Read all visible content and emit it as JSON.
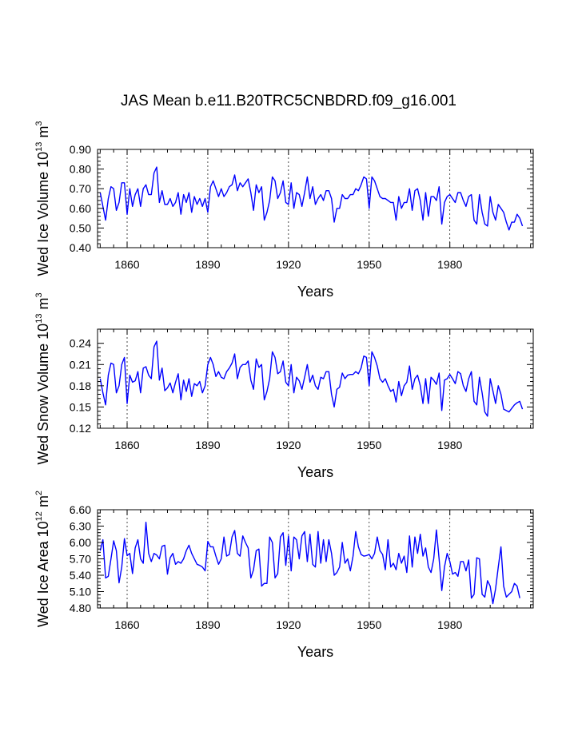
{
  "title": "JAS Mean b.e11.B20TRC5CNBDRD.f09_g16.001",
  "series_color": "#0000ff",
  "chart_data": [
    {
      "type": "line",
      "name": "ice-volume",
      "ylabel": {
        "prefix": "Wed Ice Volume 10",
        "exp": "13",
        "unit": " m",
        "unit_exp": "3"
      },
      "xlabel": "Years",
      "xlim": [
        1849,
        2011
      ],
      "ylim": [
        0.4,
        0.9
      ],
      "xticks": [
        1860,
        1890,
        1920,
        1950,
        1980
      ],
      "xtick_labels": [
        "1860",
        "1890",
        "1920",
        "1950",
        "1980"
      ],
      "yticks": [
        0.4,
        0.5,
        0.6,
        0.7,
        0.8,
        0.9
      ],
      "ytick_labels": [
        "0.40",
        "0.50",
        "0.60",
        "0.70",
        "0.80",
        "0.90"
      ],
      "x_start": 1850,
      "values": [
        0.68,
        0.61,
        0.54,
        0.65,
        0.71,
        0.7,
        0.59,
        0.63,
        0.73,
        0.73,
        0.57,
        0.7,
        0.61,
        0.67,
        0.7,
        0.61,
        0.7,
        0.72,
        0.67,
        0.67,
        0.78,
        0.81,
        0.63,
        0.69,
        0.62,
        0.62,
        0.65,
        0.61,
        0.63,
        0.68,
        0.57,
        0.67,
        0.63,
        0.68,
        0.58,
        0.66,
        0.62,
        0.65,
        0.61,
        0.65,
        0.58,
        0.71,
        0.74,
        0.7,
        0.66,
        0.7,
        0.66,
        0.68,
        0.71,
        0.72,
        0.77,
        0.69,
        0.73,
        0.71,
        0.73,
        0.75,
        0.68,
        0.59,
        0.72,
        0.68,
        0.71,
        0.54,
        0.58,
        0.64,
        0.76,
        0.74,
        0.65,
        0.68,
        0.74,
        0.63,
        0.62,
        0.73,
        0.6,
        0.68,
        0.67,
        0.61,
        0.68,
        0.76,
        0.65,
        0.71,
        0.62,
        0.65,
        0.67,
        0.64,
        0.69,
        0.69,
        0.65,
        0.53,
        0.6,
        0.6,
        0.67,
        0.65,
        0.65,
        0.67,
        0.67,
        0.7,
        0.69,
        0.72,
        0.76,
        0.75,
        0.6,
        0.76,
        0.74,
        0.7,
        0.66,
        0.65,
        0.65,
        0.64,
        0.63,
        0.63,
        0.54,
        0.66,
        0.6,
        0.63,
        0.63,
        0.7,
        0.59,
        0.69,
        0.7,
        0.64,
        0.54,
        0.68,
        0.56,
        0.66,
        0.66,
        0.64,
        0.71,
        0.52,
        0.63,
        0.66,
        0.67,
        0.65,
        0.63,
        0.68,
        0.68,
        0.64,
        0.61,
        0.66,
        0.67,
        0.54,
        0.52,
        0.67,
        0.58,
        0.52,
        0.51,
        0.66,
        0.58,
        0.54,
        0.62,
        0.6,
        0.58,
        0.53,
        0.49,
        0.53,
        0.53,
        0.57,
        0.55,
        0.51
      ]
    },
    {
      "type": "line",
      "name": "snow-volume",
      "ylabel": {
        "prefix": "Wed Snow Volume 10",
        "exp": "13",
        "unit": " m",
        "unit_exp": "3"
      },
      "xlabel": "Years",
      "xlim": [
        1849,
        2011
      ],
      "ylim": [
        0.12,
        0.26
      ],
      "xticks": [
        1860,
        1890,
        1920,
        1950,
        1980
      ],
      "xtick_labels": [
        "1860",
        "1890",
        "1920",
        "1950",
        "1980"
      ],
      "yticks": [
        0.12,
        0.15,
        0.18,
        0.21,
        0.24
      ],
      "ytick_labels": [
        "0.12",
        "0.15",
        "0.18",
        "0.21",
        "0.24"
      ],
      "x_start": 1850,
      "values": [
        0.19,
        0.17,
        0.153,
        0.195,
        0.212,
        0.21,
        0.17,
        0.18,
        0.21,
        0.22,
        0.155,
        0.195,
        0.185,
        0.187,
        0.2,
        0.17,
        0.205,
        0.207,
        0.195,
        0.19,
        0.235,
        0.243,
        0.188,
        0.205,
        0.173,
        0.177,
        0.184,
        0.17,
        0.185,
        0.197,
        0.16,
        0.188,
        0.172,
        0.19,
        0.165,
        0.183,
        0.18,
        0.186,
        0.17,
        0.18,
        0.21,
        0.22,
        0.21,
        0.193,
        0.2,
        0.192,
        0.19,
        0.2,
        0.205,
        0.212,
        0.225,
        0.19,
        0.206,
        0.21,
        0.21,
        0.215,
        0.188,
        0.175,
        0.218,
        0.206,
        0.21,
        0.16,
        0.172,
        0.19,
        0.228,
        0.22,
        0.197,
        0.2,
        0.215,
        0.185,
        0.18,
        0.21,
        0.17,
        0.192,
        0.187,
        0.175,
        0.192,
        0.21,
        0.185,
        0.195,
        0.18,
        0.175,
        0.192,
        0.19,
        0.2,
        0.2,
        0.168,
        0.15,
        0.175,
        0.178,
        0.198,
        0.19,
        0.195,
        0.196,
        0.196,
        0.2,
        0.197,
        0.205,
        0.222,
        0.22,
        0.18,
        0.228,
        0.22,
        0.208,
        0.19,
        0.185,
        0.19,
        0.18,
        0.172,
        0.175,
        0.157,
        0.186,
        0.166,
        0.18,
        0.185,
        0.208,
        0.175,
        0.19,
        0.195,
        0.18,
        0.155,
        0.19,
        0.155,
        0.192,
        0.188,
        0.182,
        0.198,
        0.145,
        0.188,
        0.19,
        0.196,
        0.19,
        0.183,
        0.2,
        0.197,
        0.18,
        0.172,
        0.19,
        0.2,
        0.158,
        0.153,
        0.192,
        0.17,
        0.143,
        0.137,
        0.19,
        0.173,
        0.155,
        0.18,
        0.168,
        0.147,
        0.145,
        0.143,
        0.148,
        0.153,
        0.156,
        0.158,
        0.147
      ]
    },
    {
      "type": "line",
      "name": "ice-area",
      "ylabel": {
        "prefix": "Wed Ice Area 10",
        "exp": "12",
        "unit": " m",
        "unit_exp": "2"
      },
      "xlabel": "Years",
      "xlim": [
        1849,
        2011
      ],
      "ylim": [
        4.8,
        6.6
      ],
      "xticks": [
        1860,
        1890,
        1920,
        1950,
        1980
      ],
      "xtick_labels": [
        "1860",
        "1890",
        "1920",
        "1950",
        "1980"
      ],
      "yticks": [
        4.8,
        5.1,
        5.4,
        5.7,
        6.0,
        6.3,
        6.6
      ],
      "ytick_labels": [
        "4.80",
        "5.10",
        "5.40",
        "5.70",
        "6.00",
        "6.30",
        "6.60"
      ],
      "x_start": 1850,
      "values": [
        5.85,
        6.05,
        5.35,
        5.38,
        5.7,
        6.03,
        5.85,
        5.26,
        5.55,
        6.07,
        5.76,
        5.8,
        5.43,
        5.9,
        6.05,
        5.7,
        5.62,
        6.37,
        5.8,
        5.65,
        5.8,
        5.77,
        5.7,
        5.93,
        5.95,
        5.42,
        5.72,
        5.8,
        5.6,
        5.65,
        5.62,
        5.7,
        5.85,
        5.95,
        5.8,
        5.7,
        5.6,
        5.58,
        5.55,
        5.48,
        6.02,
        5.92,
        5.92,
        5.75,
        5.6,
        5.7,
        6.1,
        5.75,
        5.78,
        6.1,
        6.22,
        5.8,
        5.75,
        6.12,
        6.0,
        5.9,
        5.35,
        5.5,
        5.85,
        5.88,
        5.2,
        5.25,
        5.25,
        6.1,
        6.0,
        5.35,
        5.43,
        6.1,
        6.18,
        5.58,
        6.12,
        5.48,
        6.1,
        6.05,
        5.7,
        6.12,
        6.2,
        5.65,
        6.15,
        5.6,
        5.55,
        6.2,
        5.62,
        6.05,
        5.65,
        6.05,
        5.8,
        5.4,
        5.45,
        5.55,
        6.0,
        5.62,
        5.7,
        5.48,
        5.75,
        6.2,
        5.92,
        5.78,
        5.75,
        5.76,
        5.78,
        5.7,
        5.8,
        6.1,
        5.85,
        5.78,
        5.5,
        6.05,
        5.55,
        5.62,
        5.5,
        5.8,
        5.62,
        5.75,
        5.45,
        6.12,
        5.55,
        6.1,
        5.8,
        6.15,
        5.75,
        5.9,
        5.55,
        5.45,
        5.7,
        6.23,
        5.7,
        5.12,
        5.55,
        5.8,
        5.65,
        5.42,
        5.45,
        5.38,
        5.65,
        5.65,
        5.48,
        5.68,
        4.98,
        5.05,
        5.72,
        5.7,
        5.05,
        5.0,
        5.3,
        5.2,
        4.88,
        5.15,
        5.55,
        5.92,
        5.2,
        5.0,
        5.05,
        5.1,
        5.25,
        5.2,
        4.98
      ]
    }
  ]
}
